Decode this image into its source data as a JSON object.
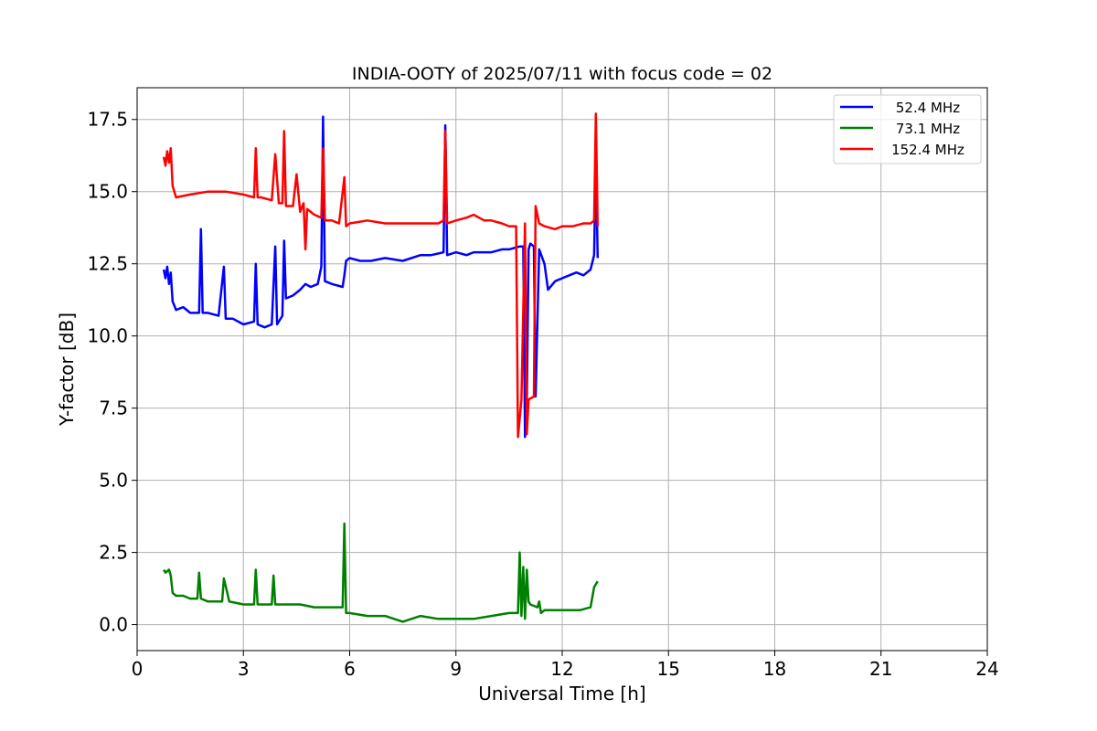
{
  "chart_data": {
    "type": "line",
    "title": "INDIA-OOTY of 2025/07/11 with focus code = 02",
    "xlabel": "Universal Time [h]",
    "ylabel": "Y-factor [dB]",
    "xlim": [
      0,
      24
    ],
    "ylim": [
      -0.9,
      18.6
    ],
    "xticks": [
      0,
      3,
      6,
      9,
      12,
      15,
      18,
      21,
      24
    ],
    "xtick_labels": [
      "0",
      "3",
      "6",
      "9",
      "12",
      "15",
      "18",
      "21",
      "24"
    ],
    "yticks": [
      0.0,
      2.5,
      5.0,
      7.5,
      10.0,
      12.5,
      15.0,
      17.5
    ],
    "ytick_labels": [
      "0.0",
      "2.5",
      "5.0",
      "7.5",
      "10.0",
      "12.5",
      "15.0",
      "17.5"
    ],
    "grid": true,
    "legend_position": "top-right",
    "series": [
      {
        "name": "52.4 MHz",
        "color": "#0000ff",
        "x": [
          0.75,
          0.8,
          0.85,
          0.9,
          0.95,
          1.0,
          1.1,
          1.3,
          1.5,
          1.75,
          1.8,
          1.85,
          2.0,
          2.3,
          2.45,
          2.5,
          2.7,
          3.0,
          3.3,
          3.35,
          3.4,
          3.6,
          3.8,
          3.9,
          3.95,
          4.0,
          4.1,
          4.15,
          4.2,
          4.4,
          4.6,
          4.75,
          4.9,
          5.1,
          5.2,
          5.25,
          5.3,
          5.5,
          5.8,
          5.85,
          5.9,
          6.0,
          6.3,
          6.6,
          7.0,
          7.5,
          8.0,
          8.3,
          8.65,
          8.7,
          8.75,
          9.0,
          9.3,
          9.5,
          9.8,
          10.0,
          10.3,
          10.5,
          10.8,
          10.9,
          10.95,
          11.0,
          11.05,
          11.1,
          11.2,
          11.25,
          11.35,
          11.5,
          11.6,
          11.8,
          12.0,
          12.2,
          12.4,
          12.6,
          12.8,
          12.9,
          12.95,
          13.0
        ],
        "y": [
          12.3,
          12.0,
          12.4,
          11.8,
          12.2,
          11.2,
          10.9,
          11.0,
          10.8,
          10.8,
          13.7,
          10.8,
          10.8,
          10.7,
          12.4,
          10.6,
          10.6,
          10.4,
          10.5,
          12.5,
          10.4,
          10.3,
          10.4,
          13.1,
          10.4,
          10.5,
          10.7,
          13.3,
          11.3,
          11.4,
          11.6,
          11.8,
          11.7,
          11.8,
          12.4,
          17.6,
          11.9,
          11.8,
          11.7,
          12.1,
          12.6,
          12.7,
          12.6,
          12.6,
          12.7,
          12.6,
          12.8,
          12.8,
          12.9,
          17.3,
          12.8,
          12.9,
          12.8,
          12.9,
          12.9,
          12.9,
          13.0,
          13.0,
          13.1,
          13.1,
          6.5,
          7.8,
          13.0,
          13.2,
          13.1,
          7.9,
          13.0,
          12.5,
          11.6,
          11.9,
          12.0,
          12.1,
          12.2,
          12.1,
          12.3,
          12.8,
          16.2,
          12.7
        ]
      },
      {
        "name": "73.1 MHz",
        "color": "#008000",
        "x": [
          0.75,
          0.8,
          0.9,
          0.95,
          1.0,
          1.1,
          1.3,
          1.5,
          1.7,
          1.75,
          1.8,
          2.0,
          2.3,
          2.4,
          2.45,
          2.6,
          3.0,
          3.3,
          3.35,
          3.4,
          3.8,
          3.85,
          3.9,
          4.2,
          4.6,
          5.0,
          5.5,
          5.8,
          5.85,
          5.9,
          6.0,
          6.5,
          7.0,
          7.5,
          8.0,
          8.5,
          9.0,
          9.5,
          10.0,
          10.5,
          10.7,
          10.75,
          10.8,
          10.85,
          10.9,
          10.95,
          11.0,
          11.05,
          11.1,
          11.3,
          11.35,
          11.4,
          11.5,
          12.0,
          12.5,
          12.8,
          12.9,
          13.0
        ],
        "y": [
          1.9,
          1.8,
          1.9,
          1.7,
          1.1,
          1.0,
          1.0,
          0.9,
          0.9,
          1.8,
          0.9,
          0.8,
          0.8,
          0.8,
          1.6,
          0.8,
          0.7,
          0.7,
          1.9,
          0.7,
          0.7,
          1.7,
          0.7,
          0.7,
          0.7,
          0.6,
          0.6,
          0.6,
          3.5,
          0.4,
          0.4,
          0.3,
          0.3,
          0.1,
          0.3,
          0.2,
          0.2,
          0.2,
          0.3,
          0.4,
          0.4,
          0.4,
          2.5,
          0.3,
          2.0,
          0.2,
          1.9,
          0.8,
          0.7,
          0.6,
          0.8,
          0.4,
          0.5,
          0.5,
          0.5,
          0.6,
          1.3,
          1.5
        ]
      },
      {
        "name": "152.4 MHz",
        "color": "#ff0000",
        "x": [
          0.75,
          0.8,
          0.85,
          0.9,
          0.95,
          1.0,
          1.1,
          1.5,
          2.0,
          2.5,
          3.0,
          3.3,
          3.35,
          3.4,
          3.5,
          3.8,
          3.9,
          4.0,
          4.1,
          4.15,
          4.2,
          4.4,
          4.5,
          4.6,
          4.7,
          4.75,
          4.8,
          5.0,
          5.2,
          5.25,
          5.3,
          5.5,
          5.7,
          5.85,
          5.9,
          6.0,
          6.5,
          7.0,
          7.5,
          8.0,
          8.5,
          8.65,
          8.7,
          8.75,
          9.0,
          9.3,
          9.5,
          9.8,
          10.0,
          10.3,
          10.5,
          10.7,
          10.75,
          10.85,
          10.95,
          11.0,
          11.05,
          11.2,
          11.25,
          11.35,
          11.5,
          11.8,
          12.0,
          12.3,
          12.6,
          12.8,
          12.9,
          12.95,
          13.0
        ],
        "y": [
          16.2,
          15.9,
          16.4,
          16.0,
          16.5,
          15.2,
          14.8,
          14.9,
          15.0,
          15.0,
          14.9,
          14.8,
          16.5,
          14.8,
          14.8,
          14.7,
          16.3,
          14.6,
          14.6,
          17.1,
          14.5,
          14.5,
          15.6,
          14.3,
          14.6,
          13.0,
          14.4,
          14.2,
          14.1,
          16.5,
          14.0,
          14.0,
          13.9,
          15.5,
          13.8,
          13.9,
          14.0,
          13.9,
          13.9,
          13.9,
          13.9,
          14.0,
          17.1,
          13.9,
          14.0,
          14.1,
          14.2,
          14.0,
          14.0,
          13.9,
          13.8,
          13.8,
          6.5,
          7.8,
          13.9,
          6.6,
          7.8,
          7.9,
          14.5,
          13.9,
          13.8,
          13.7,
          13.8,
          13.8,
          13.9,
          13.9,
          14.0,
          17.7,
          13.8
        ]
      }
    ]
  }
}
